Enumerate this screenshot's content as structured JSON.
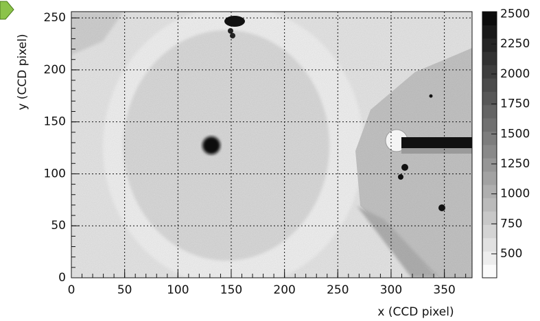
{
  "chart_data": {
    "type": "image",
    "xlabel": "x (CCD pixel)",
    "ylabel": "y (CCD pixel)",
    "xlim": [
      0,
      376
    ],
    "xticks": [
      0,
      50,
      100,
      150,
      200,
      250,
      300,
      350
    ],
    "ylim": [
      0,
      256
    ],
    "yticks": [
      0,
      50,
      100,
      150,
      200,
      250
    ],
    "zlim": [
      300,
      2520
    ],
    "zticks": [
      500,
      750,
      1000,
      1250,
      1500,
      1750,
      2000,
      2250,
      2500
    ],
    "grid": true
  }
}
